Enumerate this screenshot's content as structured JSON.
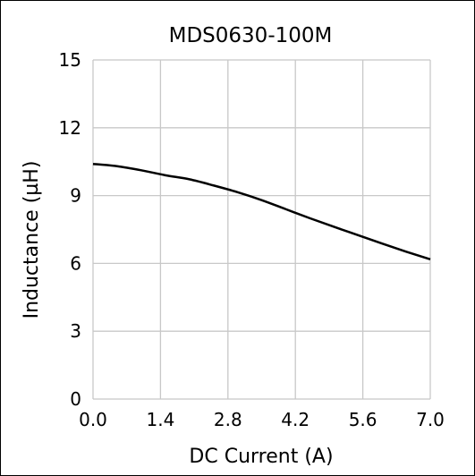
{
  "chart_data": {
    "type": "line",
    "title": "MDS0630-100M",
    "xlabel": "DC Current (A)",
    "ylabel": "Inductance (µH)",
    "xlim": [
      0,
      7
    ],
    "ylim": [
      0,
      15
    ],
    "x_ticks": [
      "0.0",
      "1.4",
      "2.8",
      "4.2",
      "5.6",
      "7.0"
    ],
    "y_ticks": [
      "0",
      "3",
      "6",
      "9",
      "12",
      "15"
    ],
    "grid": true,
    "legend": "none",
    "series": [
      {
        "color": "#000000",
        "x": [
          0.0,
          0.5,
          1.0,
          1.5,
          2.0,
          2.5,
          3.0,
          3.5,
          4.0,
          4.5,
          5.0,
          5.5,
          6.0,
          6.5,
          7.0
        ],
        "y": [
          10.4,
          10.3,
          10.12,
          9.9,
          9.72,
          9.45,
          9.15,
          8.8,
          8.4,
          8.0,
          7.62,
          7.25,
          6.88,
          6.52,
          6.18
        ]
      }
    ]
  }
}
